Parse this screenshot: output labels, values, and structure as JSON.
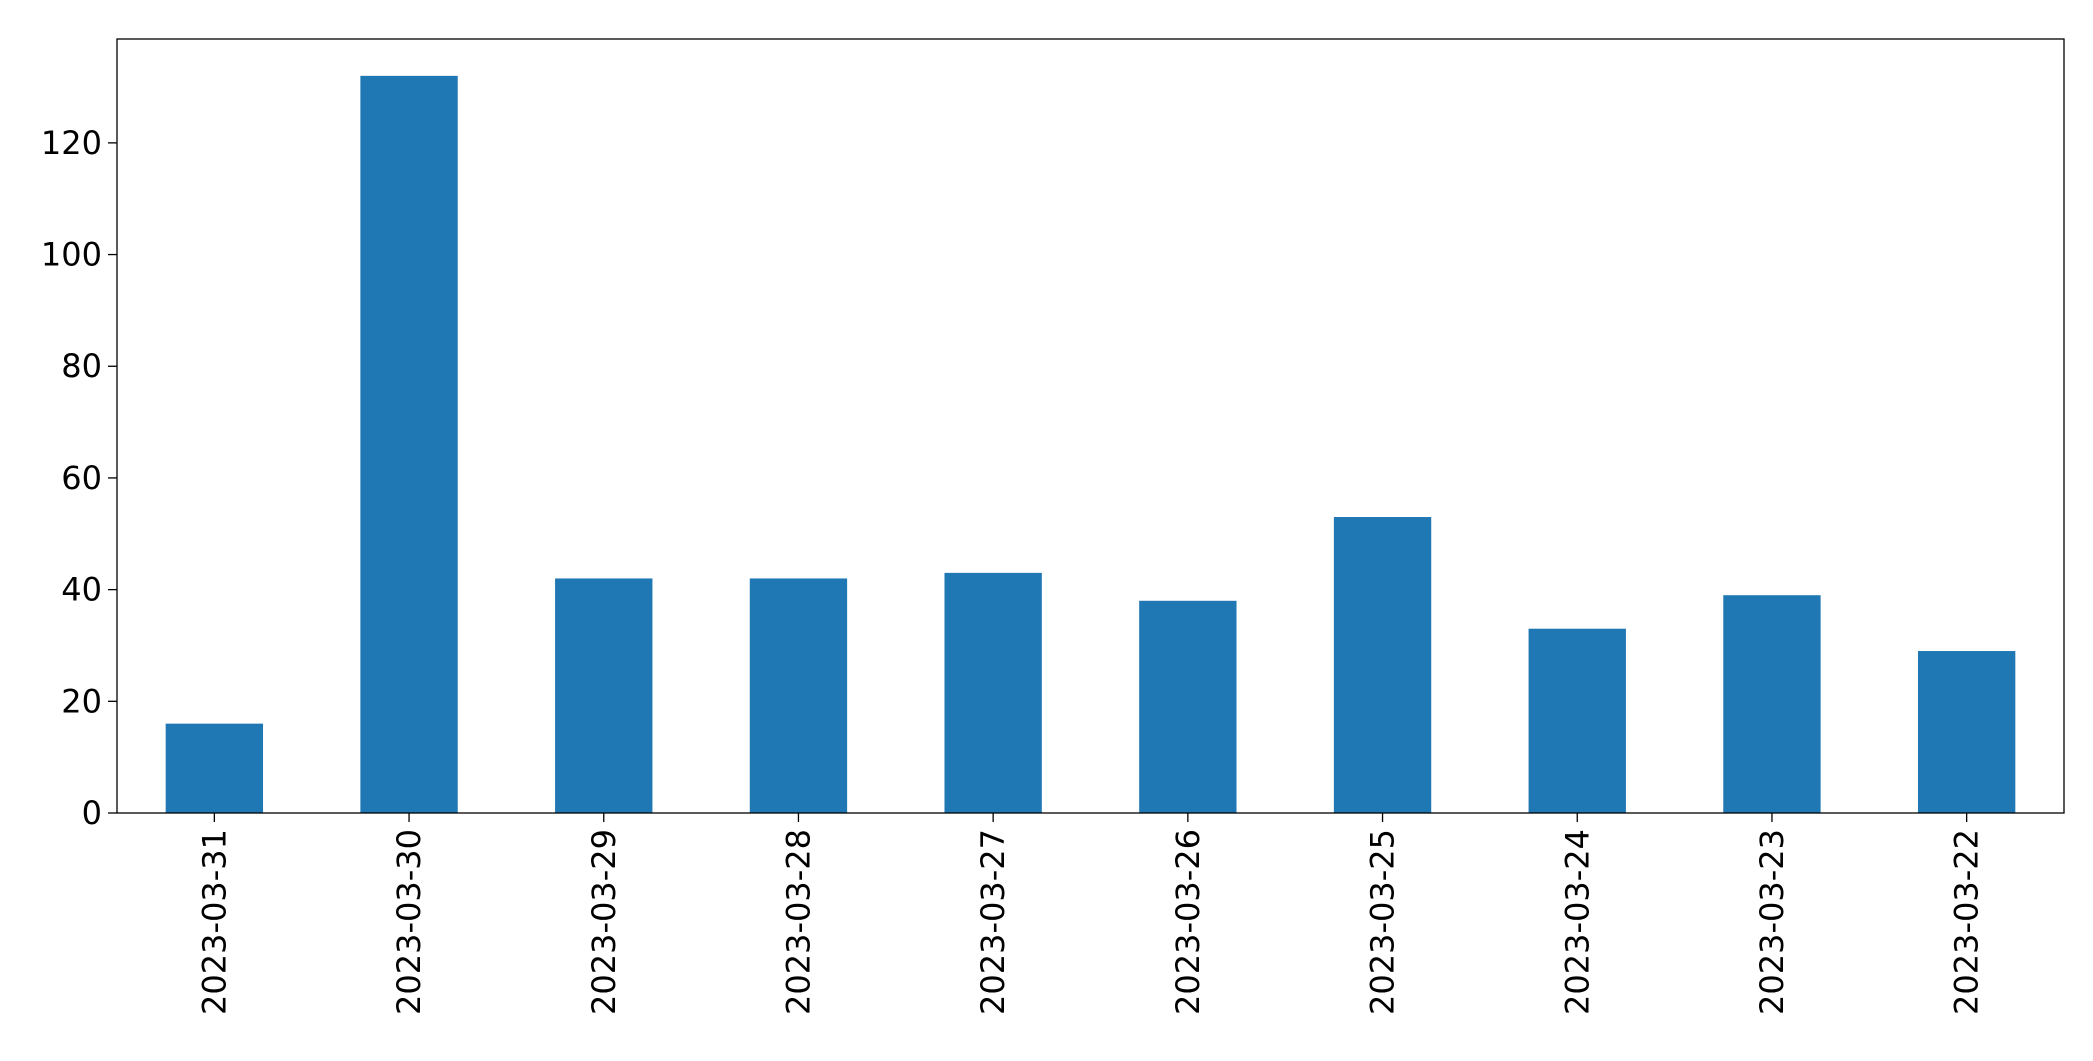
{
  "chart_data": {
    "type": "bar",
    "categories": [
      "2023-03-31",
      "2023-03-30",
      "2023-03-29",
      "2023-03-28",
      "2023-03-27",
      "2023-03-26",
      "2023-03-25",
      "2023-03-24",
      "2023-03-23",
      "2023-03-22"
    ],
    "values": [
      16,
      132,
      42,
      42,
      43,
      38,
      53,
      33,
      39,
      29
    ],
    "color": "#1f77b4",
    "ylim": [
      0,
      138.6
    ],
    "yticks": [
      0,
      20,
      40,
      60,
      80,
      100,
      120
    ],
    "grid": false
  }
}
